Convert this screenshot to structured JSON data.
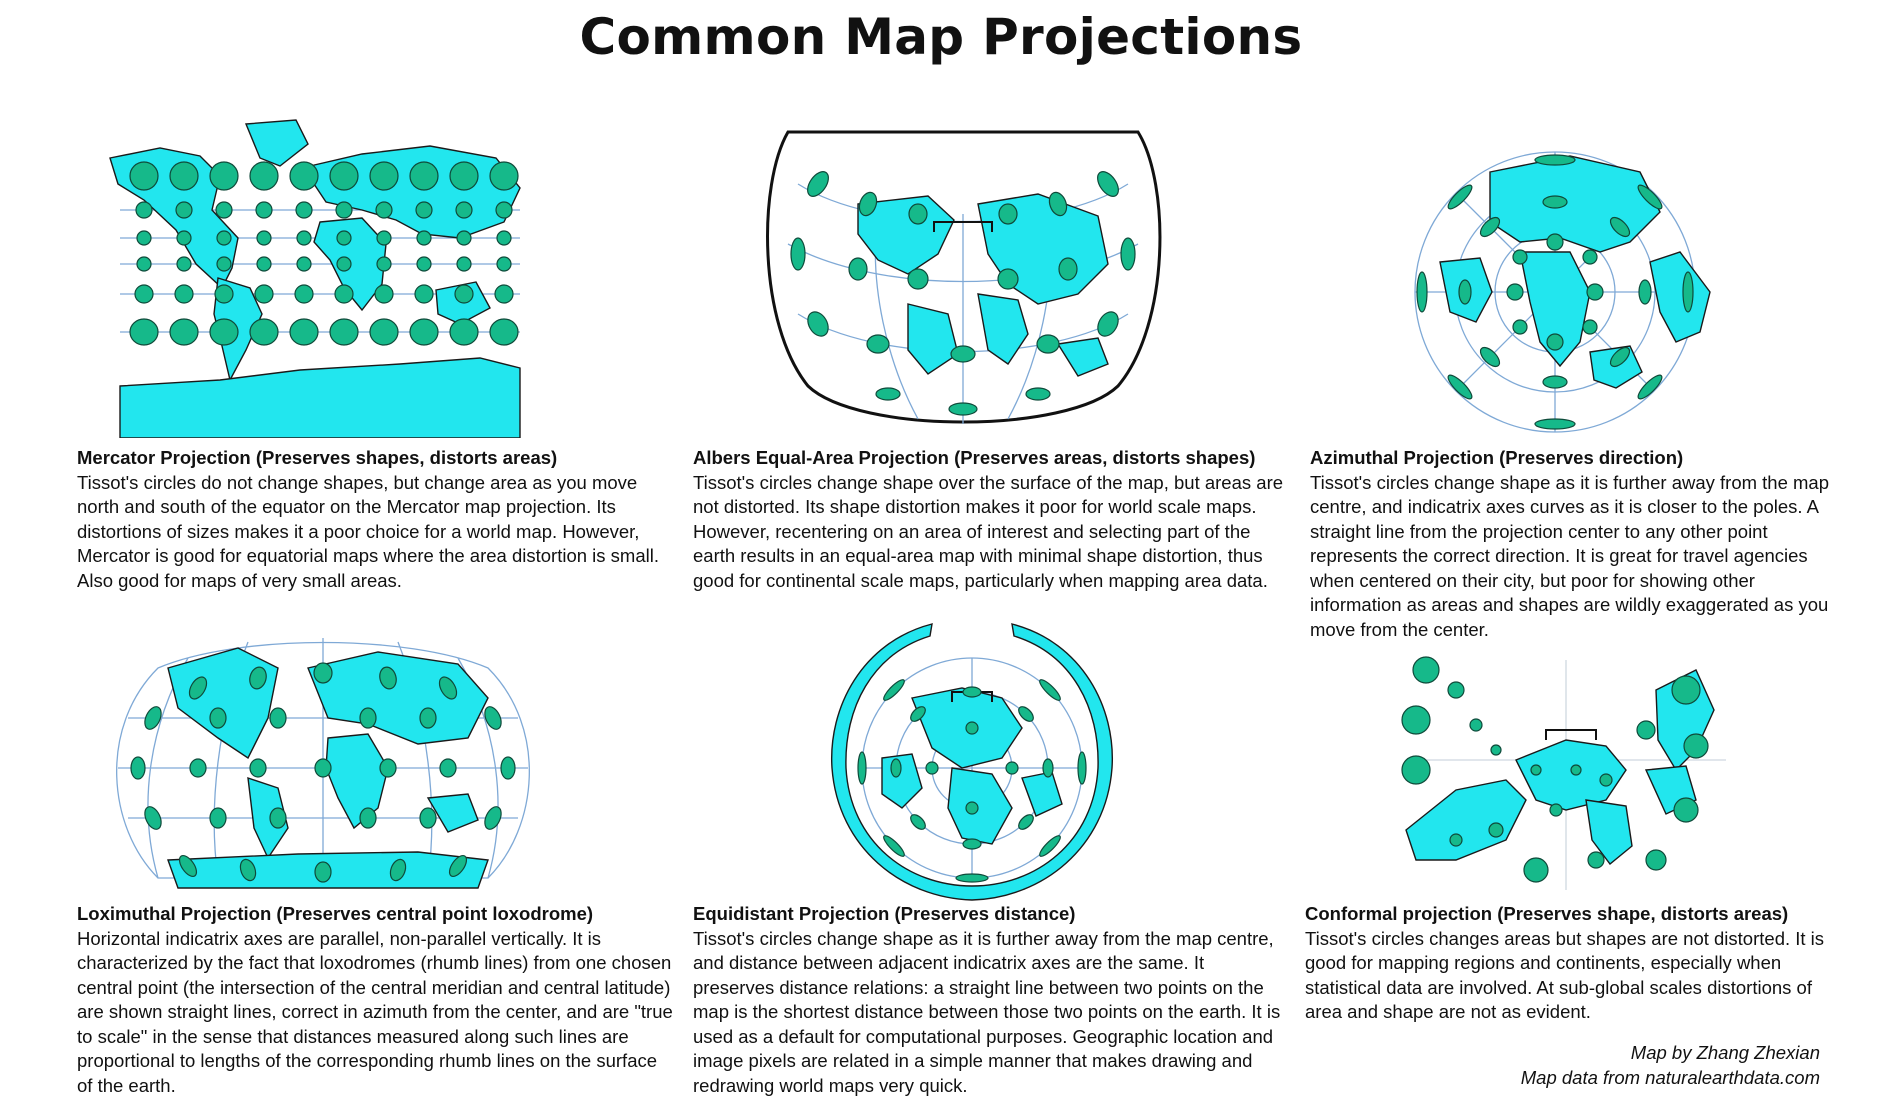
{
  "title": "Common Map Projections",
  "colors": {
    "land": "#22e6ee",
    "tissot": "#16b98a",
    "graticule": "#7fa9d6",
    "outline": "#111111"
  },
  "projections": [
    {
      "id": "mercator",
      "heading": "Mercator Projection (Preserves shapes, distorts areas)",
      "body": "Tissot's circles do not change shapes, but change area as you move north and south of the equator on the Mercator map projection. Its distortions of sizes makes it a poor choice for a world map. However, Mercator is good for equatorial maps where the area distortion is small. Also good for maps of very small areas."
    },
    {
      "id": "albers",
      "heading": "Albers Equal-Area Projection (Preserves areas, distorts shapes)",
      "body": "Tissot's circles change shape over the surface of the map, but areas are not distorted. Its shape distortion makes it poor for world scale maps. However, recentering on an area of interest and selecting part of the earth results in an equal-area map with minimal shape distortion, thus good for continental scale maps, particularly when mapping area data."
    },
    {
      "id": "azimuthal",
      "heading": "Azimuthal Projection (Preserves direction)",
      "body": "Tissot's circles change shape as it is further away from the map centre, and indicatrix axes curves as it is closer to the poles. A straight line from the projection center to any other point represents the correct direction. It is great for travel agencies when centered on their city, but poor for showing other information as areas and shapes are wildly exaggerated as you move from the center."
    },
    {
      "id": "loximuthal",
      "heading": "Loximuthal Projection (Preserves central point loxodrome)",
      "body": "Horizontal indicatrix axes are parallel, non-parallel vertically. It is characterized by the fact that loxodromes (rhumb lines) from one chosen central point (the intersection of the central meridian and central latitude) are shown straight lines, correct in azimuth from the center, and are \"true to scale\" in the sense that distances measured along such lines are proportional to lengths of the corresponding rhumb lines on the surface of the earth."
    },
    {
      "id": "equidistant",
      "heading": "Equidistant Projection (Preserves distance)",
      "body": "Tissot's circles change shape as it is further away from the map centre, and distance between adjacent indicatrix axes are the same. It preserves distance relations: a straight line between two points on the map is the shortest distance between those two points on the earth. It is used as a default for computational purposes. Geographic location and image pixels are related in a simple manner that makes drawing and redrawing world maps very quick."
    },
    {
      "id": "conformal",
      "heading": "Conformal projection (Preserves shape, distorts areas)",
      "body": "Tissot's circles changes areas but shapes are not distorted. It is good for mapping regions and continents, especially when statistical data are involved. At sub-global scales distortions of area and shape are not as evident."
    }
  ],
  "credits": {
    "author": "Map by Zhang Zhexian",
    "source": "Map data from naturalearthdata.com"
  }
}
